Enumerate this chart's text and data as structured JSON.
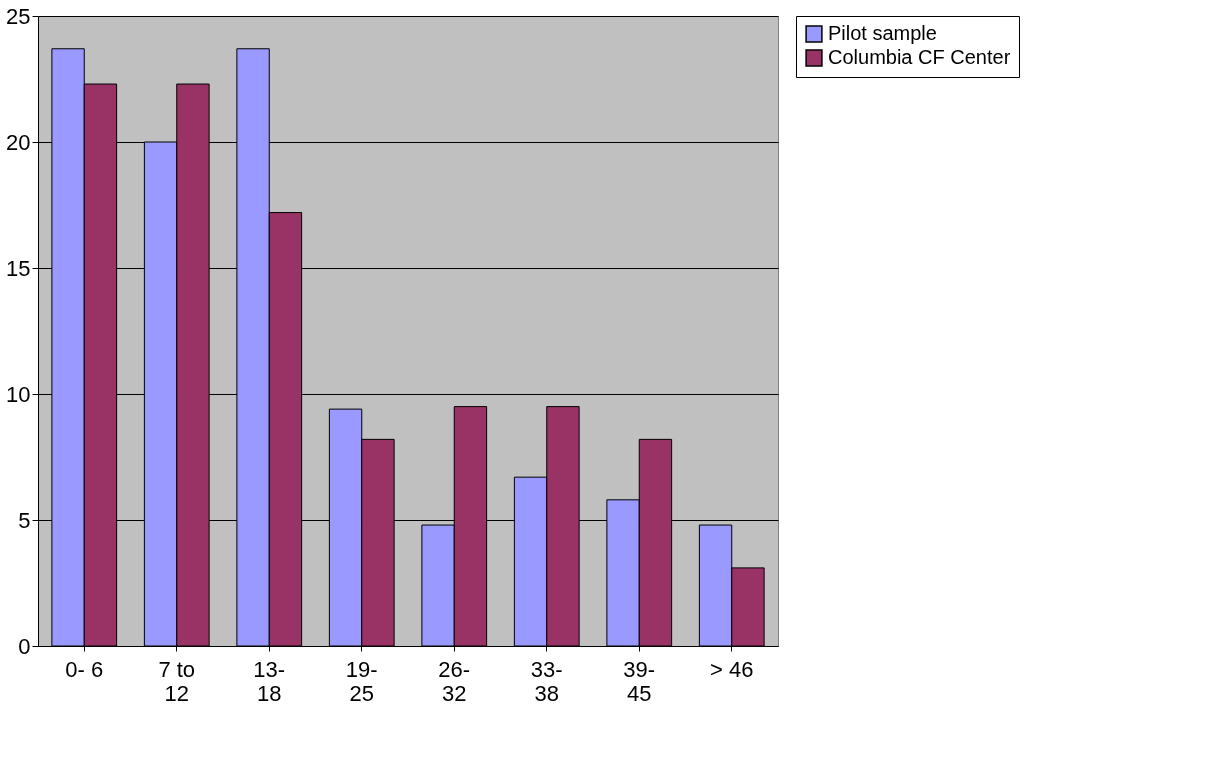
{
  "chart_data": {
    "type": "bar",
    "categories": [
      "0- 6",
      "7 to 12",
      "13-18",
      "19-25",
      "26-32",
      "33-38",
      "39-45",
      "> 46"
    ],
    "series": [
      {
        "name": "Pilot sample",
        "color": "#9999ff",
        "values": [
          23.7,
          20.0,
          23.7,
          9.4,
          4.8,
          6.7,
          5.8,
          4.8
        ]
      },
      {
        "name": "Columbia CF Center",
        "color": "#993366",
        "values": [
          22.3,
          22.3,
          17.2,
          8.2,
          9.5,
          9.5,
          8.2,
          3.1
        ]
      }
    ],
    "ylim": [
      0,
      25
    ],
    "yticks": [
      0,
      5,
      10,
      15,
      20,
      25
    ],
    "grid": "y",
    "legend": "right"
  }
}
